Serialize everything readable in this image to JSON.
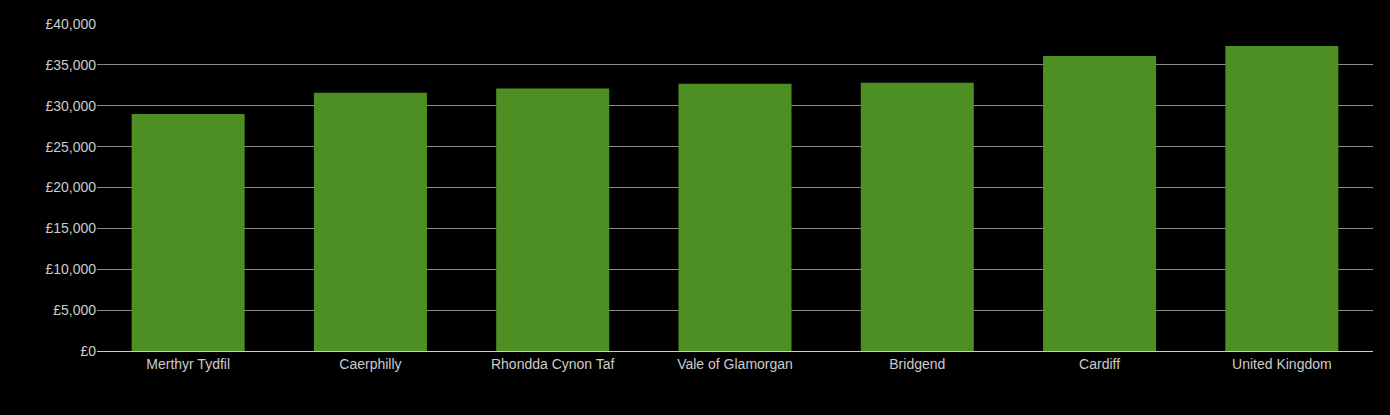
{
  "chart_data": {
    "type": "bar",
    "categories": [
      "Merthyr Tydfil",
      "Caerphilly",
      "Rhondda Cynon Taf",
      "Vale of Glamorgan",
      "Bridgend",
      "Cardiff",
      "United Kingdom"
    ],
    "values": [
      29000,
      31600,
      32100,
      32700,
      32800,
      36100,
      37300
    ],
    "color": "#4d8f22",
    "ylim": [
      0,
      40000
    ],
    "yticks": [
      {
        "value": 0,
        "label": "£0"
      },
      {
        "value": 5000,
        "label": "£5,000"
      },
      {
        "value": 10000,
        "label": "£10,000"
      },
      {
        "value": 15000,
        "label": "£15,000"
      },
      {
        "value": 20000,
        "label": "£20,000"
      },
      {
        "value": 25000,
        "label": "£25,000"
      },
      {
        "value": 30000,
        "label": "£30,000"
      },
      {
        "value": 35000,
        "label": "£35,000"
      },
      {
        "value": 40000,
        "label": "£40,000"
      }
    ],
    "grid": true
  }
}
